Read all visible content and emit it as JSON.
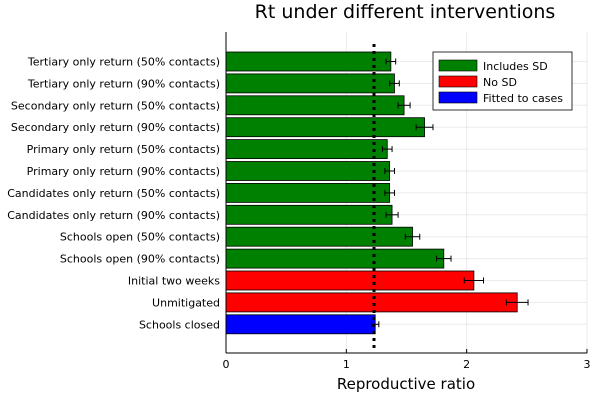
{
  "chart_data": {
    "type": "bar",
    "orientation": "horizontal",
    "title": "Rt under different interventions",
    "xlabel": "Reproductive ratio",
    "ylabel": "",
    "xlim": [
      0,
      3
    ],
    "xticks": [
      "0",
      "1",
      "2",
      "3"
    ],
    "grid": true,
    "legend_position": "top-right",
    "reference_line": {
      "value": 1.23,
      "style": "dotted"
    },
    "legend": [
      {
        "name": "Includes SD",
        "color": "#008000"
      },
      {
        "name": "No SD",
        "color": "#ff0000"
      },
      {
        "name": "Fitted to cases",
        "color": "#0000ff"
      }
    ],
    "categories": [
      "Tertiary only return (50% contacts)",
      "Tertiary only return (90% contacts)",
      "Secondary only return (50% contacts)",
      "Secondary only return (90% contacts)",
      "Primary only return (50% contacts)",
      "Primary only return (90% contacts)",
      "Candidates only return (50% contacts)",
      "Candidates only return (90% contacts)",
      "Schools open (50% contacts)",
      "Schools open (90% contacts)",
      "Initial two weeks",
      "Unmitigated",
      "Schools closed"
    ],
    "values": [
      1.37,
      1.4,
      1.48,
      1.65,
      1.34,
      1.36,
      1.36,
      1.38,
      1.55,
      1.81,
      2.06,
      2.42,
      1.24
    ],
    "errors": [
      0.04,
      0.04,
      0.05,
      0.07,
      0.04,
      0.04,
      0.04,
      0.05,
      0.06,
      0.06,
      0.08,
      0.09,
      0.03
    ],
    "groups": [
      "Includes SD",
      "Includes SD",
      "Includes SD",
      "Includes SD",
      "Includes SD",
      "Includes SD",
      "Includes SD",
      "Includes SD",
      "Includes SD",
      "Includes SD",
      "No SD",
      "No SD",
      "Fitted to cases"
    ]
  }
}
